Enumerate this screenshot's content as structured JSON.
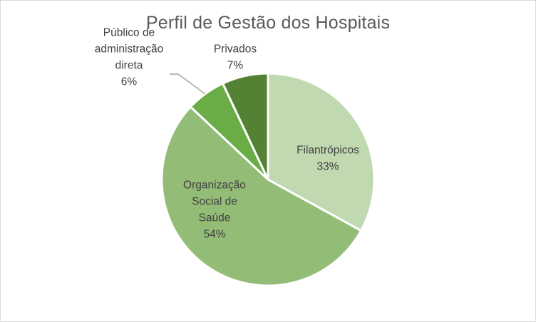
{
  "chart_data": {
    "type": "pie",
    "title": "Perfil de Gestão dos Hospitais",
    "slices": [
      {
        "label_lines": [
          "Filantrópicos"
        ],
        "value": 33,
        "value_label": "33%",
        "color": "#c0d9b0"
      },
      {
        "label_lines": [
          "Organização",
          "Social de",
          "Saúde"
        ],
        "value": 54,
        "value_label": "54%",
        "color": "#93bd77"
      },
      {
        "label_lines": [
          "Público de",
          "administração",
          "direta"
        ],
        "value": 6,
        "value_label": "6%",
        "color": "#6aac46"
      },
      {
        "label_lines": [
          "Privados"
        ],
        "value": 7,
        "value_label": "7%",
        "color": "#548235"
      }
    ],
    "legend": "none"
  }
}
